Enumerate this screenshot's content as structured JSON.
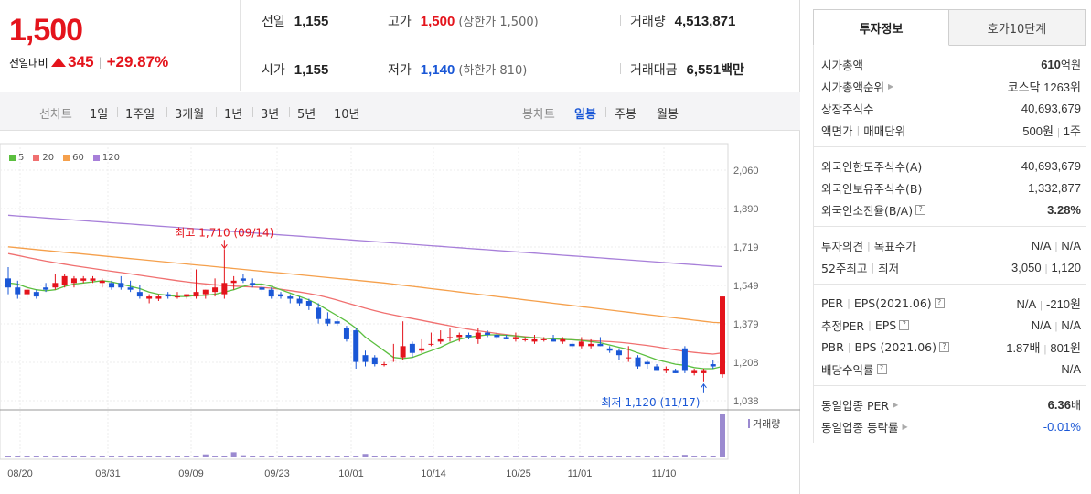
{
  "price": {
    "current": "1,500",
    "change_label": "전일대비",
    "change_amount": "345",
    "change_percent": "+29.87%"
  },
  "stats": {
    "prev": {
      "label": "전일",
      "value": "1,155"
    },
    "high": {
      "label": "고가",
      "value": "1,500",
      "sub": "(상한가 1,500)"
    },
    "volume": {
      "label": "거래량",
      "value": "4,513,871"
    },
    "open": {
      "label": "시가",
      "value": "1,155"
    },
    "low": {
      "label": "저가",
      "value": "1,140",
      "sub": "(하한가 810)"
    },
    "amount": {
      "label": "거래대금",
      "value": "6,551",
      "unit": "백만"
    }
  },
  "toolbar": {
    "line_chart_label": "선차트",
    "periods": [
      "1일",
      "1주일",
      "3개월",
      "1년",
      "3년",
      "5년",
      "10년"
    ],
    "candle_chart_label": "봉차트",
    "candle_periods": [
      "일봉",
      "주봉",
      "월봉"
    ],
    "candle_active": "일봉"
  },
  "colors": {
    "up": "#e4141c",
    "down": "#1a57d6",
    "ma5": "#5bbf3f",
    "ma20": "#f07070",
    "ma60": "#f5a04c",
    "ma120": "#a77fd9",
    "volume": "#9b8ad0"
  },
  "chart_data": {
    "type": "candlestick",
    "legend": [
      "5",
      "20",
      "60",
      "120"
    ],
    "y_ticks": [
      "2,060",
      "1,890",
      "1,719",
      "1,549",
      "1,379",
      "1,208",
      "1,038"
    ],
    "y_range": [
      1038,
      2060
    ],
    "x_ticks": [
      "08/20",
      "08/31",
      "09/09",
      "09/23",
      "10/01",
      "10/14",
      "10/25",
      "11/01",
      "11/10"
    ],
    "high_annotation": "최고 1,710 (09/14)",
    "low_annotation": "최저 1,120 (11/17)",
    "volume_label": "거래량",
    "candles": [
      [
        1580,
        1630,
        1510,
        1540
      ],
      [
        1540,
        1570,
        1490,
        1510
      ],
      [
        1510,
        1540,
        1490,
        1530
      ],
      [
        1520,
        1530,
        1490,
        1500
      ],
      [
        1540,
        1560,
        1520,
        1530
      ],
      [
        1540,
        1600,
        1530,
        1560
      ],
      [
        1550,
        1600,
        1540,
        1590
      ],
      [
        1560,
        1590,
        1540,
        1580
      ],
      [
        1570,
        1590,
        1560,
        1580
      ],
      [
        1570,
        1590,
        1560,
        1580
      ],
      [
        1560,
        1580,
        1540,
        1570
      ],
      [
        1560,
        1570,
        1530,
        1540
      ],
      [
        1560,
        1590,
        1530,
        1540
      ],
      [
        1540,
        1570,
        1520,
        1530
      ],
      [
        1520,
        1550,
        1490,
        1500
      ],
      [
        1490,
        1510,
        1470,
        1500
      ],
      [
        1490,
        1510,
        1480,
        1500
      ],
      [
        1510,
        1520,
        1490,
        1500
      ],
      [
        1500,
        1520,
        1490,
        1500
      ],
      [
        1500,
        1510,
        1490,
        1510
      ],
      [
        1500,
        1620,
        1490,
        1520
      ],
      [
        1510,
        1530,
        1490,
        1530
      ],
      [
        1520,
        1580,
        1500,
        1540
      ],
      [
        1510,
        1710,
        1490,
        1560
      ],
      [
        1560,
        1590,
        1530,
        1570
      ],
      [
        1580,
        1600,
        1560,
        1570
      ],
      [
        1560,
        1580,
        1540,
        1550
      ],
      [
        1540,
        1560,
        1520,
        1530
      ],
      [
        1530,
        1540,
        1490,
        1500
      ],
      [
        1510,
        1520,
        1490,
        1500
      ],
      [
        1500,
        1510,
        1470,
        1490
      ],
      [
        1490,
        1500,
        1460,
        1470
      ],
      [
        1480,
        1490,
        1440,
        1460
      ],
      [
        1450,
        1470,
        1380,
        1400
      ],
      [
        1400,
        1430,
        1370,
        1380
      ],
      [
        1390,
        1400,
        1370,
        1380
      ],
      [
        1360,
        1370,
        1300,
        1310
      ],
      [
        1350,
        1360,
        1180,
        1210
      ],
      [
        1240,
        1260,
        1190,
        1210
      ],
      [
        1230,
        1240,
        1190,
        1200
      ],
      [
        1200,
        1210,
        1190,
        1200
      ],
      [
        1220,
        1290,
        1210,
        1220
      ],
      [
        1230,
        1390,
        1220,
        1280
      ],
      [
        1290,
        1300,
        1230,
        1250
      ],
      [
        1260,
        1310,
        1250,
        1270
      ],
      [
        1290,
        1340,
        1280,
        1290
      ],
      [
        1300,
        1350,
        1290,
        1310
      ],
      [
        1320,
        1360,
        1300,
        1320
      ],
      [
        1320,
        1340,
        1300,
        1330
      ],
      [
        1330,
        1340,
        1310,
        1320
      ],
      [
        1310,
        1360,
        1290,
        1340
      ],
      [
        1340,
        1350,
        1320,
        1330
      ],
      [
        1330,
        1340,
        1310,
        1320
      ],
      [
        1320,
        1330,
        1310,
        1310
      ],
      [
        1310,
        1340,
        1300,
        1320
      ],
      [
        1310,
        1320,
        1300,
        1310
      ],
      [
        1300,
        1330,
        1290,
        1310
      ],
      [
        1310,
        1320,
        1300,
        1310
      ],
      [
        1310,
        1330,
        1300,
        1300
      ],
      [
        1300,
        1320,
        1290,
        1310
      ],
      [
        1290,
        1300,
        1270,
        1280
      ],
      [
        1280,
        1320,
        1270,
        1300
      ],
      [
        1280,
        1310,
        1270,
        1290
      ],
      [
        1290,
        1320,
        1280,
        1280
      ],
      [
        1270,
        1280,
        1250,
        1260
      ],
      [
        1260,
        1270,
        1220,
        1240
      ],
      [
        1230,
        1280,
        1210,
        1230
      ],
      [
        1230,
        1240,
        1180,
        1190
      ],
      [
        1210,
        1220,
        1180,
        1200
      ],
      [
        1190,
        1200,
        1170,
        1170
      ],
      [
        1170,
        1190,
        1160,
        1180
      ],
      [
        1170,
        1180,
        1160,
        1160
      ],
      [
        1270,
        1280,
        1160,
        1170
      ],
      [
        1160,
        1180,
        1150,
        1170
      ],
      [
        1160,
        1180,
        1120,
        1170
      ],
      [
        1200,
        1220,
        1180,
        1190
      ],
      [
        1155,
        1500,
        1140,
        1500
      ]
    ],
    "ma5": [
      1560,
      1555,
      1540,
      1530,
      1525,
      1530,
      1545,
      1555,
      1560,
      1565,
      1570,
      1565,
      1555,
      1545,
      1535,
      1520,
      1510,
      1505,
      1500,
      1500,
      1505,
      1505,
      1510,
      1520,
      1530,
      1545,
      1555,
      1555,
      1545,
      1530,
      1515,
      1500,
      1485,
      1465,
      1440,
      1415,
      1390,
      1360,
      1320,
      1290,
      1260,
      1230,
      1225,
      1230,
      1245,
      1260,
      1275,
      1295,
      1310,
      1320,
      1325,
      1330,
      1330,
      1328,
      1325,
      1320,
      1318,
      1315,
      1312,
      1310,
      1308,
      1305,
      1300,
      1295,
      1285,
      1275,
      1265,
      1250,
      1235,
      1220,
      1210,
      1200,
      1195,
      1185,
      1180,
      1180,
      1190
    ],
    "ma20": [
      1690,
      1682,
      1673,
      1665,
      1657,
      1650,
      1643,
      1636,
      1630,
      1624,
      1618,
      1612,
      1606,
      1600,
      1594,
      1588,
      1582,
      1576,
      1570,
      1565,
      1560,
      1556,
      1552,
      1549,
      1546,
      1544,
      1542,
      1540,
      1537,
      1532,
      1526,
      1520,
      1513,
      1505,
      1495,
      1484,
      1472,
      1460,
      1448,
      1437,
      1427,
      1418,
      1410,
      1402,
      1394,
      1386,
      1378,
      1370,
      1362,
      1355,
      1348,
      1342,
      1336,
      1331,
      1326,
      1322,
      1318,
      1315,
      1312,
      1310,
      1308,
      1306,
      1304,
      1302,
      1300,
      1297,
      1293,
      1288,
      1283,
      1277,
      1270,
      1263,
      1257,
      1252,
      1248,
      1245,
      1250
    ],
    "ma60": [
      1720,
      1716,
      1712,
      1708,
      1704,
      1700,
      1696,
      1692,
      1688,
      1684,
      1680,
      1676,
      1672,
      1668,
      1664,
      1660,
      1656,
      1652,
      1648,
      1644,
      1640,
      1636,
      1632,
      1628,
      1624,
      1620,
      1616,
      1612,
      1608,
      1604,
      1600,
      1596,
      1592,
      1588,
      1584,
      1580,
      1576,
      1572,
      1568,
      1564,
      1560,
      1555,
      1550,
      1545,
      1540,
      1535,
      1530,
      1525,
      1520,
      1515,
      1510,
      1505,
      1500,
      1495,
      1490,
      1485,
      1480,
      1475,
      1470,
      1465,
      1460,
      1455,
      1450,
      1445,
      1440,
      1435,
      1430,
      1425,
      1420,
      1415,
      1410,
      1405,
      1400,
      1395,
      1390,
      1385,
      1383
    ],
    "ma120": [
      1860,
      1857,
      1854,
      1851,
      1848,
      1845,
      1842,
      1839,
      1836,
      1833,
      1830,
      1827,
      1824,
      1821,
      1818,
      1815,
      1812,
      1809,
      1806,
      1803,
      1800,
      1797,
      1794,
      1791,
      1788,
      1785,
      1782,
      1779,
      1776,
      1773,
      1770,
      1767,
      1764,
      1761,
      1758,
      1755,
      1752,
      1749,
      1746,
      1743,
      1740,
      1737,
      1734,
      1731,
      1728,
      1725,
      1722,
      1719,
      1716,
      1713,
      1710,
      1707,
      1704,
      1701,
      1698,
      1695,
      1692,
      1689,
      1686,
      1683,
      1680,
      1677,
      1674,
      1671,
      1668,
      1665,
      1662,
      1659,
      1656,
      1653,
      1650,
      1647,
      1644,
      1641,
      1638,
      1635,
      1632
    ],
    "volume": [
      2,
      2,
      2,
      2,
      2,
      2,
      2,
      3,
      2,
      2,
      2,
      2,
      2,
      2,
      2,
      2,
      2,
      3,
      2,
      2,
      2,
      7,
      2,
      3,
      12,
      5,
      3,
      2,
      2,
      2,
      3,
      2,
      2,
      2,
      3,
      2,
      2,
      2,
      8,
      4,
      2,
      3,
      2,
      2,
      2,
      3,
      2,
      2,
      2,
      2,
      2,
      2,
      2,
      2,
      2,
      2,
      2,
      2,
      2,
      3,
      2,
      2,
      2,
      2,
      2,
      2,
      2,
      2,
      2,
      2,
      2,
      2,
      6,
      2,
      2,
      3,
      100
    ]
  },
  "side": {
    "tabs": [
      "투자정보",
      "호가10단계"
    ],
    "group1": [
      {
        "k": "시가총액",
        "v": "610",
        "u": "억원"
      },
      {
        "k": "시가총액순위",
        "v": "코스닥 1263위"
      },
      {
        "k": "상장주식수",
        "v": "40,693,679"
      },
      {
        "k1": "액면가",
        "k2": "매매단위",
        "v1": "500원",
        "v2": "1주"
      }
    ],
    "group2": [
      {
        "k": "외국인한도주식수(A)",
        "v": "40,693,679"
      },
      {
        "k": "외국인보유주식수(B)",
        "v": "1,332,877"
      },
      {
        "k": "외국인소진율(B/A)",
        "v": "3.28%"
      }
    ],
    "group3": [
      {
        "k1": "투자의견",
        "k2": "목표주가",
        "v1": "N/A",
        "v2": "N/A"
      },
      {
        "k1": "52주최고",
        "k2": "최저",
        "v1": "3,050",
        "v2": "1,120"
      }
    ],
    "group4": [
      {
        "k1": "PER",
        "k2": "EPS(2021.06)",
        "v1": "N/A",
        "v2": "-210원"
      },
      {
        "k1": "추정PER",
        "k2": "EPS",
        "v1": "N/A",
        "v2": "N/A"
      },
      {
        "k1": "PBR",
        "k2": "BPS (2021.06)",
        "v1": "1.87배",
        "v2": "801원"
      },
      {
        "k": "배당수익률",
        "v": "N/A"
      }
    ],
    "group5": [
      {
        "k": "동일업종 PER",
        "v": "6.36",
        "u": "배"
      },
      {
        "k": "동일업종 등락률",
        "v": "-0.01%"
      }
    ]
  }
}
